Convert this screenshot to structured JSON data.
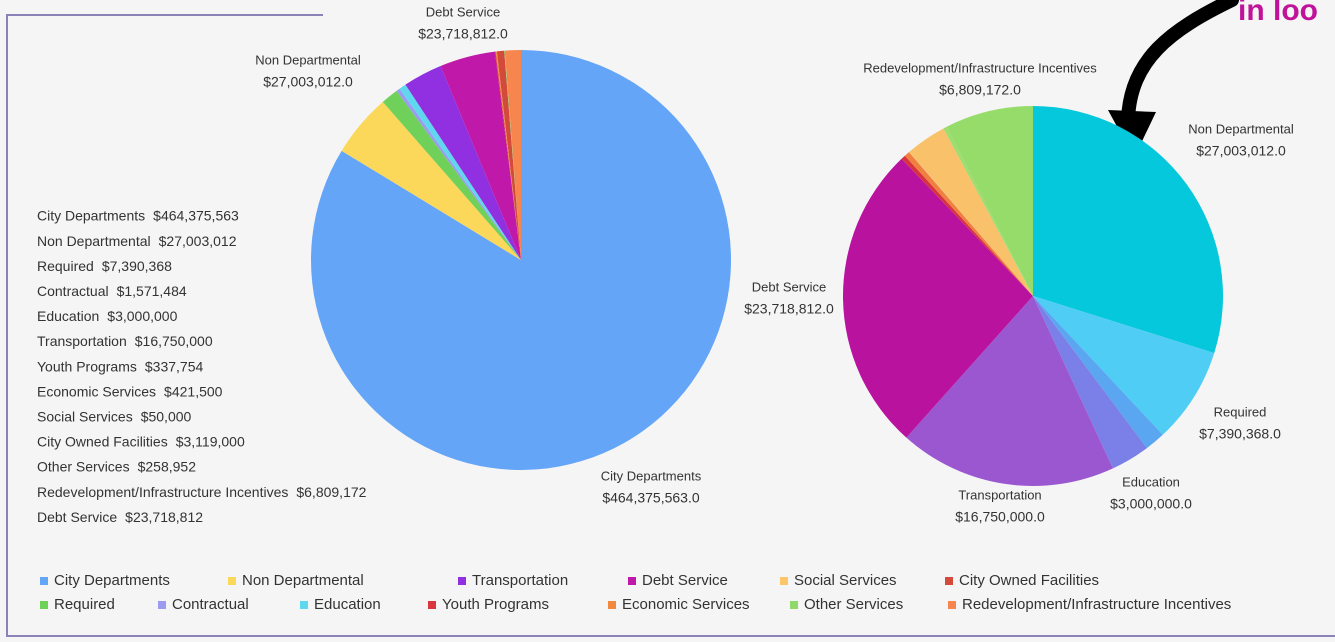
{
  "corner_text": "in loo",
  "summary_list": [
    {
      "name": "City Departments",
      "amount": "$464,375,563"
    },
    {
      "name": "Non Departmental",
      "amount": "$27,003,012"
    },
    {
      "name": "Required",
      "amount": "$7,390,368"
    },
    {
      "name": "Contractual",
      "amount": "$1,571,484"
    },
    {
      "name": "Education",
      "amount": "$3,000,000"
    },
    {
      "name": "Transportation",
      "amount": "$16,750,000"
    },
    {
      "name": "Youth Programs",
      "amount": "$337,754"
    },
    {
      "name": "Economic Services",
      "amount": "$421,500"
    },
    {
      "name": "Social Services",
      "amount": "$50,000"
    },
    {
      "name": "City Owned Facilities",
      "amount": "$3,119,000"
    },
    {
      "name": "Other Services",
      "amount": "$258,952"
    },
    {
      "name": "Redevelopment/Infrastructure Incentives",
      "amount": "$6,809,172"
    },
    {
      "name": "Debt Service",
      "amount": "$23,718,812"
    }
  ],
  "legend": [
    [
      {
        "name": "City Departments",
        "color": "#64a5f7"
      },
      {
        "name": "Non Departmental",
        "color": "#fbd85a"
      },
      {
        "name": "Transportation",
        "color": "#9030e0"
      },
      {
        "name": "Debt Service",
        "color": "#c018a8"
      },
      {
        "name": "Social Services",
        "color": "#fbc66a"
      },
      {
        "name": "City Owned Facilities",
        "color": "#d44a3a"
      }
    ],
    [
      {
        "name": "Required",
        "color": "#6fd15a"
      },
      {
        "name": "Contractual",
        "color": "#9b9bef"
      },
      {
        "name": "Education",
        "color": "#5fd8ef"
      },
      {
        "name": "Youth Programs",
        "color": "#d9363e"
      },
      {
        "name": "Economic Services",
        "color": "#f0883e"
      },
      {
        "name": "Other Services",
        "color": "#8fd86a"
      },
      {
        "name": "Redevelopment/Infrastructure Incentives",
        "color": "#f6864e"
      }
    ]
  ],
  "chart_data": [
    {
      "type": "pie",
      "categories": [
        "City Departments",
        "Non Departmental",
        "Required",
        "Contractual",
        "Education",
        "Transportation",
        "Debt Service",
        "Youth Programs",
        "Economic Services",
        "Social Services",
        "City Owned Facilities",
        "Other Services",
        "Redevelopment/Infrastructure Incentives"
      ],
      "values": [
        464375563,
        27003012,
        7390368,
        1571484,
        3000000,
        16750000,
        23718812,
        337754,
        421500,
        50000,
        3119000,
        258952,
        6809172
      ],
      "value_labels": [
        "$464,375,563.0",
        "$27,003,012.0",
        null,
        null,
        null,
        null,
        "$23,718,812.0",
        null,
        null,
        null,
        null,
        null,
        null
      ],
      "colors": [
        "#64a5f7",
        "#fbd85a",
        "#6fd15a",
        "#9b9bef",
        "#5fd8ef",
        "#9030e0",
        "#c018a8",
        "#d9363e",
        "#f0883e",
        "#fbc66a",
        "#d44a3a",
        "#8fd86a",
        "#f6864e"
      ]
    },
    {
      "type": "pie",
      "categories": [
        "Non Departmental",
        "Required",
        "Contractual",
        "Education",
        "Transportation",
        "Debt Service",
        "Youth Programs",
        "Economic Services",
        "Social Services",
        "City Owned Facilities",
        "Other Services",
        "Redevelopment/Infrastructure Incentives"
      ],
      "values": [
        27003012,
        7390368,
        1571484,
        3000000,
        16750000,
        23718812,
        337754,
        421500,
        50000,
        3119000,
        258952,
        6809172
      ],
      "value_labels": [
        "$27,003,012.0",
        "$7,390,368.0",
        null,
        "$3,000,000.0",
        "$16,750,000.0",
        "$23,718,812.0",
        null,
        null,
        null,
        null,
        null,
        "$6,809,172.0"
      ],
      "colors": [
        "#06c8dd",
        "#4fcdf5",
        "#5aa6f0",
        "#7b7fe8",
        "#9b57d0",
        "#b8129e",
        "#d8343e",
        "#f08040",
        "#fbb870",
        "#f9c26a",
        "#a0dc70",
        "#96dc6a"
      ]
    }
  ]
}
